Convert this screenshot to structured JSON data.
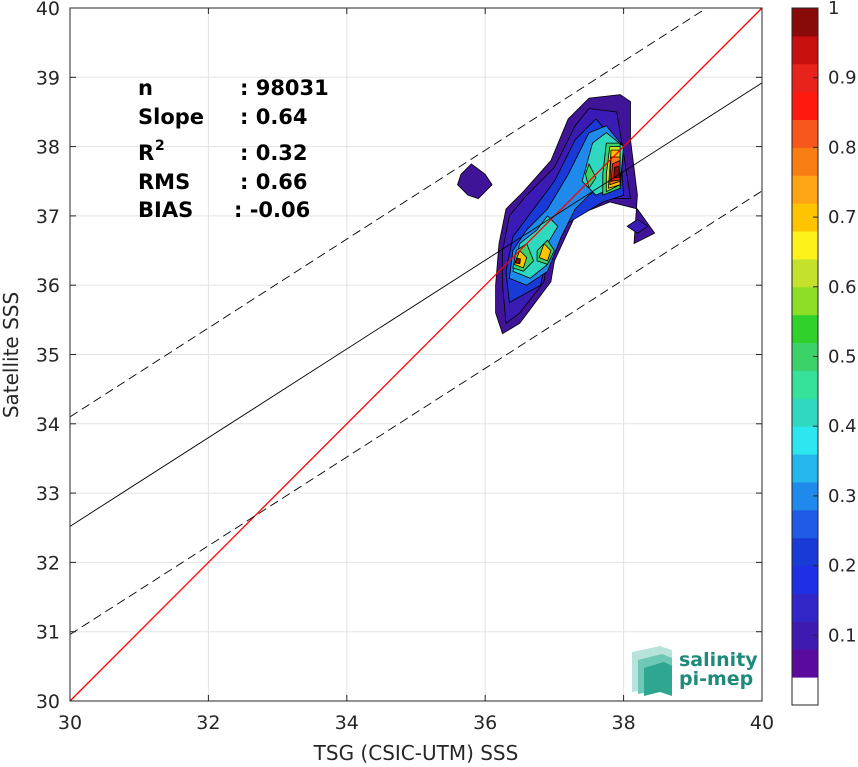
{
  "chart_data": {
    "type": "heatmap",
    "title": "",
    "xlabel": "TSG (CSIC-UTM) SSS",
    "ylabel": "Satellite SSS",
    "xlim": [
      30,
      40
    ],
    "ylim": [
      30,
      40
    ],
    "x_ticks": [
      30,
      32,
      34,
      36,
      38,
      40
    ],
    "y_ticks": [
      30,
      31,
      32,
      33,
      34,
      35,
      36,
      37,
      38,
      39,
      40
    ],
    "grid": true,
    "stats": [
      {
        "label": "n",
        "value": ": 98031"
      },
      {
        "label": "Slope",
        "value": ": 0.64"
      },
      {
        "label": "R",
        "sup": "2",
        "value": ": 0.32"
      },
      {
        "label": "RMS",
        "value": ": 0.66"
      },
      {
        "label": "BIAS",
        "value": ": -0.06"
      }
    ],
    "lines": [
      {
        "name": "one-to-one",
        "color": "#ff0000",
        "style": "solid",
        "x": [
          30,
          40
        ],
        "y": [
          30,
          40
        ]
      },
      {
        "name": "regression",
        "color": "#000000",
        "style": "solid",
        "x": [
          30,
          40
        ],
        "y": [
          32.52,
          38.92
        ]
      },
      {
        "name": "upper-bound",
        "color": "#000000",
        "style": "dashed",
        "x": [
          30,
          39.2
        ],
        "y": [
          34.1,
          40
        ]
      },
      {
        "name": "lower-bound",
        "color": "#000000",
        "style": "dashed",
        "x": [
          30,
          40
        ],
        "y": [
          30.96,
          37.36
        ]
      }
    ],
    "density_levels": [
      {
        "level": 0.05,
        "color": "#3f1496"
      },
      {
        "level": 0.1,
        "color": "#3a1bb6"
      },
      {
        "level": 0.2,
        "color": "#1a3ad8"
      },
      {
        "level": 0.3,
        "color": "#1f8aeb"
      },
      {
        "level": 0.4,
        "color": "#2fd9c0"
      },
      {
        "level": 0.5,
        "color": "#3cd26a"
      },
      {
        "level": 0.6,
        "color": "#c4e22b"
      },
      {
        "level": 0.7,
        "color": "#ffc400"
      },
      {
        "level": 0.8,
        "color": "#f97e12"
      },
      {
        "level": 0.9,
        "color": "#e8231c"
      },
      {
        "level": 1.0,
        "color": "#8a0a0a"
      }
    ],
    "density_regions": [
      {
        "level": 0.05,
        "points": [
          [
            36.25,
            35.3
          ],
          [
            36.5,
            35.45
          ],
          [
            36.95,
            36.05
          ],
          [
            37.0,
            36.35
          ],
          [
            37.3,
            37.0
          ],
          [
            37.8,
            37.2
          ],
          [
            38.2,
            37.1
          ],
          [
            38.45,
            36.75
          ],
          [
            38.15,
            36.6
          ],
          [
            38.2,
            37.3
          ],
          [
            38.1,
            38.1
          ],
          [
            38.1,
            38.65
          ],
          [
            37.95,
            38.75
          ],
          [
            37.5,
            38.7
          ],
          [
            37.2,
            38.4
          ],
          [
            36.95,
            37.8
          ],
          [
            36.55,
            37.35
          ],
          [
            36.3,
            37.1
          ],
          [
            36.2,
            36.6
          ],
          [
            36.15,
            36.0
          ],
          [
            36.15,
            35.6
          ]
        ]
      },
      {
        "level": 0.05,
        "points": [
          [
            35.65,
            37.6
          ],
          [
            35.8,
            37.75
          ],
          [
            36.0,
            37.6
          ],
          [
            36.1,
            37.45
          ],
          [
            35.9,
            37.25
          ],
          [
            35.75,
            37.3
          ],
          [
            35.6,
            37.45
          ]
        ]
      },
      {
        "level": 0.1,
        "points": [
          [
            36.3,
            35.45
          ],
          [
            36.5,
            35.6
          ],
          [
            36.85,
            36.05
          ],
          [
            36.9,
            36.4
          ],
          [
            37.25,
            37.05
          ],
          [
            37.8,
            37.25
          ],
          [
            38.1,
            37.25
          ],
          [
            38.0,
            37.9
          ],
          [
            37.9,
            38.5
          ],
          [
            37.5,
            38.55
          ],
          [
            37.3,
            38.3
          ],
          [
            37.0,
            37.7
          ],
          [
            36.6,
            37.3
          ],
          [
            36.35,
            37.0
          ],
          [
            36.25,
            36.5
          ],
          [
            36.25,
            36.0
          ]
        ]
      },
      {
        "level": 0.1,
        "points": [
          [
            38.05,
            36.85
          ],
          [
            38.2,
            36.95
          ],
          [
            38.35,
            36.85
          ],
          [
            38.2,
            36.75
          ]
        ]
      },
      {
        "level": 0.2,
        "points": [
          [
            36.35,
            35.75
          ],
          [
            36.8,
            36.0
          ],
          [
            36.9,
            36.5
          ],
          [
            37.2,
            36.9
          ],
          [
            37.7,
            37.2
          ],
          [
            38.0,
            37.3
          ],
          [
            37.95,
            38.0
          ],
          [
            37.6,
            38.4
          ],
          [
            37.3,
            38.1
          ],
          [
            37.0,
            37.5
          ],
          [
            36.7,
            37.1
          ],
          [
            36.4,
            36.7
          ],
          [
            36.3,
            36.2
          ]
        ]
      },
      {
        "level": 0.3,
        "points": [
          [
            36.35,
            36.1
          ],
          [
            36.6,
            36.0
          ],
          [
            36.9,
            36.2
          ],
          [
            37.1,
            36.7
          ],
          [
            37.3,
            37.1
          ],
          [
            37.5,
            37.3
          ],
          [
            37.8,
            37.5
          ],
          [
            37.95,
            37.4
          ],
          [
            38.0,
            38.0
          ],
          [
            37.75,
            38.3
          ],
          [
            37.5,
            38.2
          ],
          [
            37.2,
            37.6
          ],
          [
            36.9,
            37.1
          ],
          [
            36.6,
            36.8
          ],
          [
            36.4,
            36.5
          ]
        ]
      },
      {
        "level": 0.4,
        "points": [
          [
            36.4,
            36.2
          ],
          [
            36.65,
            36.1
          ],
          [
            36.9,
            36.3
          ],
          [
            36.9,
            36.6
          ],
          [
            37.05,
            36.85
          ],
          [
            36.9,
            37.0
          ],
          [
            36.75,
            36.8
          ],
          [
            36.5,
            36.6
          ]
        ]
      },
      {
        "level": 0.4,
        "points": [
          [
            37.4,
            37.5
          ],
          [
            37.6,
            37.3
          ],
          [
            37.95,
            37.45
          ],
          [
            38.0,
            38.0
          ],
          [
            37.75,
            38.2
          ],
          [
            37.55,
            38.05
          ]
        ]
      },
      {
        "level": 0.5,
        "points": [
          [
            37.45,
            37.6
          ],
          [
            37.5,
            37.4
          ],
          [
            37.6,
            37.55
          ],
          [
            37.5,
            37.75
          ]
        ]
      },
      {
        "level": 0.5,
        "points": [
          [
            37.7,
            37.3
          ],
          [
            37.95,
            37.4
          ],
          [
            37.95,
            38.05
          ],
          [
            37.75,
            38.05
          ],
          [
            37.7,
            37.6
          ]
        ]
      },
      {
        "level": 0.5,
        "points": [
          [
            36.4,
            36.25
          ],
          [
            36.55,
            36.2
          ],
          [
            36.7,
            36.35
          ],
          [
            36.6,
            36.6
          ],
          [
            36.45,
            36.5
          ]
        ]
      },
      {
        "level": 0.5,
        "points": [
          [
            36.75,
            36.35
          ],
          [
            36.9,
            36.3
          ],
          [
            37.0,
            36.5
          ],
          [
            36.9,
            36.65
          ],
          [
            36.75,
            36.5
          ]
        ]
      },
      {
        "level": 0.6,
        "points": [
          [
            37.75,
            37.35
          ],
          [
            37.95,
            37.45
          ],
          [
            37.95,
            38.0
          ],
          [
            37.8,
            38.0
          ],
          [
            37.75,
            37.6
          ]
        ]
      },
      {
        "level": 0.7,
        "points": [
          [
            36.42,
            36.3
          ],
          [
            36.55,
            36.25
          ],
          [
            36.6,
            36.4
          ],
          [
            36.5,
            36.5
          ]
        ]
      },
      {
        "level": 0.7,
        "points": [
          [
            36.78,
            36.4
          ],
          [
            36.9,
            36.35
          ],
          [
            36.95,
            36.5
          ],
          [
            36.85,
            36.6
          ]
        ]
      },
      {
        "level": 0.7,
        "points": [
          [
            37.78,
            37.4
          ],
          [
            37.95,
            37.45
          ],
          [
            37.95,
            37.95
          ],
          [
            37.82,
            37.95
          ]
        ]
      },
      {
        "level": 0.8,
        "points": [
          [
            37.8,
            37.45
          ],
          [
            37.95,
            37.5
          ],
          [
            37.95,
            37.85
          ],
          [
            37.82,
            37.85
          ]
        ]
      },
      {
        "level": 0.9,
        "points": [
          [
            37.82,
            37.5
          ],
          [
            37.95,
            37.52
          ],
          [
            37.95,
            37.8
          ],
          [
            37.84,
            37.75
          ]
        ]
      },
      {
        "level": 1.0,
        "points": [
          [
            37.86,
            37.55
          ],
          [
            37.94,
            37.56
          ],
          [
            37.93,
            37.72
          ],
          [
            37.87,
            37.7
          ]
        ]
      },
      {
        "level": 1.0,
        "points": [
          [
            36.44,
            36.32
          ],
          [
            36.5,
            36.31
          ],
          [
            36.51,
            36.38
          ],
          [
            36.45,
            36.39
          ]
        ]
      }
    ],
    "colorbar": {
      "ticks": [
        0.1,
        0.2,
        0.3,
        0.4,
        0.5,
        0.6,
        0.7,
        0.8,
        0.9,
        1
      ],
      "lim": [
        0,
        1
      ],
      "colors": [
        "#ffffff",
        "#5a0a9c",
        "#3f1ab0",
        "#3326c8",
        "#1f2fe6",
        "#1a3ad8",
        "#1e5ce8",
        "#1f8aeb",
        "#26b6ee",
        "#2ce6f0",
        "#2fd9c0",
        "#36e19a",
        "#3cd26a",
        "#2fd12b",
        "#8ede28",
        "#c4e22b",
        "#fff21b",
        "#ffc400",
        "#ffa414",
        "#f97e12",
        "#f8561a",
        "#ff1a10",
        "#e8231c",
        "#c70f0f",
        "#8a0a0a"
      ]
    }
  },
  "logo": {
    "line1": "salinity",
    "line2": "pi-mep"
  }
}
